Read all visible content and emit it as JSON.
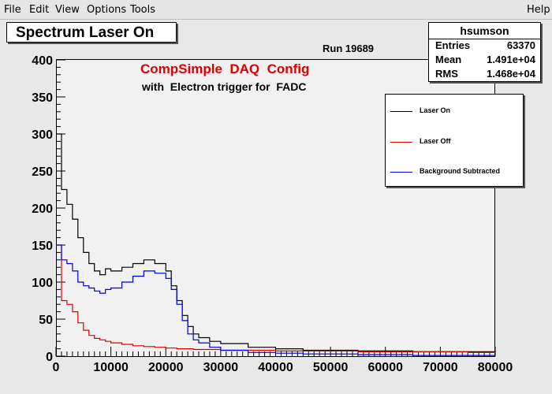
{
  "menu": {
    "items": [
      "File",
      "Edit",
      "View",
      "Options",
      "Tools"
    ],
    "underline": [
      "F",
      "E",
      "V",
      "O",
      "T"
    ],
    "help": "Help",
    "help_underline": "H"
  },
  "title": "Spectrum Laser On",
  "stats": {
    "name": "hsumson",
    "rows": [
      {
        "key": "Entries",
        "value": "63370"
      },
      {
        "key": "Mean",
        "value": "1.491e+04"
      },
      {
        "key": "RMS",
        "value": "1.468e+04"
      }
    ]
  },
  "run_label": "Run 19689",
  "notes": {
    "line1": "CompSimple  DAQ  Config",
    "line2": "with  Electron trigger for  FADC"
  },
  "colors": {
    "laser_on": "#000000",
    "laser_off": "#e00000",
    "background_subtracted": "#0000e0",
    "frame_bg": "#f1f1f1"
  },
  "chart_data": {
    "type": "line",
    "title": "Spectrum Laser On",
    "xlabel": "",
    "ylabel": "",
    "xlim": [
      0,
      80000
    ],
    "ylim": [
      0,
      400
    ],
    "x_ticks": [
      0,
      10000,
      20000,
      30000,
      40000,
      50000,
      60000,
      70000,
      80000
    ],
    "y_ticks": [
      0,
      50,
      100,
      150,
      200,
      250,
      300,
      350,
      400
    ],
    "grid": false,
    "legend_position": "top-right",
    "x": [
      0,
      1000,
      2000,
      3000,
      4000,
      5000,
      6000,
      7000,
      8000,
      9000,
      10000,
      12000,
      14000,
      16000,
      18000,
      20000,
      21000,
      22000,
      23000,
      24000,
      25000,
      26000,
      28000,
      30000,
      35000,
      40000,
      45000,
      50000,
      55000,
      60000,
      65000,
      70000,
      75000,
      80000
    ],
    "series": [
      {
        "name": "Laser On",
        "values": [
          300,
          225,
          205,
          185,
          160,
          140,
          125,
          115,
          110,
          118,
          115,
          120,
          125,
          130,
          125,
          115,
          95,
          75,
          55,
          40,
          30,
          25,
          20,
          17,
          12,
          10,
          8,
          8,
          7,
          7,
          6,
          6,
          6,
          5
        ]
      },
      {
        "name": "Laser Off",
        "values": [
          150,
          75,
          70,
          60,
          45,
          35,
          28,
          24,
          22,
          20,
          18,
          16,
          14,
          13,
          12,
          11,
          11,
          10,
          10,
          10,
          9,
          9,
          9,
          8,
          8,
          7,
          7,
          7,
          6,
          6,
          6,
          6,
          5,
          5
        ]
      },
      {
        "name": "Background Subtracted",
        "values": [
          150,
          130,
          125,
          115,
          100,
          95,
          92,
          88,
          85,
          90,
          92,
          100,
          108,
          115,
          112,
          105,
          90,
          70,
          48,
          30,
          22,
          18,
          12,
          8,
          5,
          4,
          3,
          3,
          2,
          2,
          1,
          1,
          1,
          1
        ]
      }
    ]
  }
}
